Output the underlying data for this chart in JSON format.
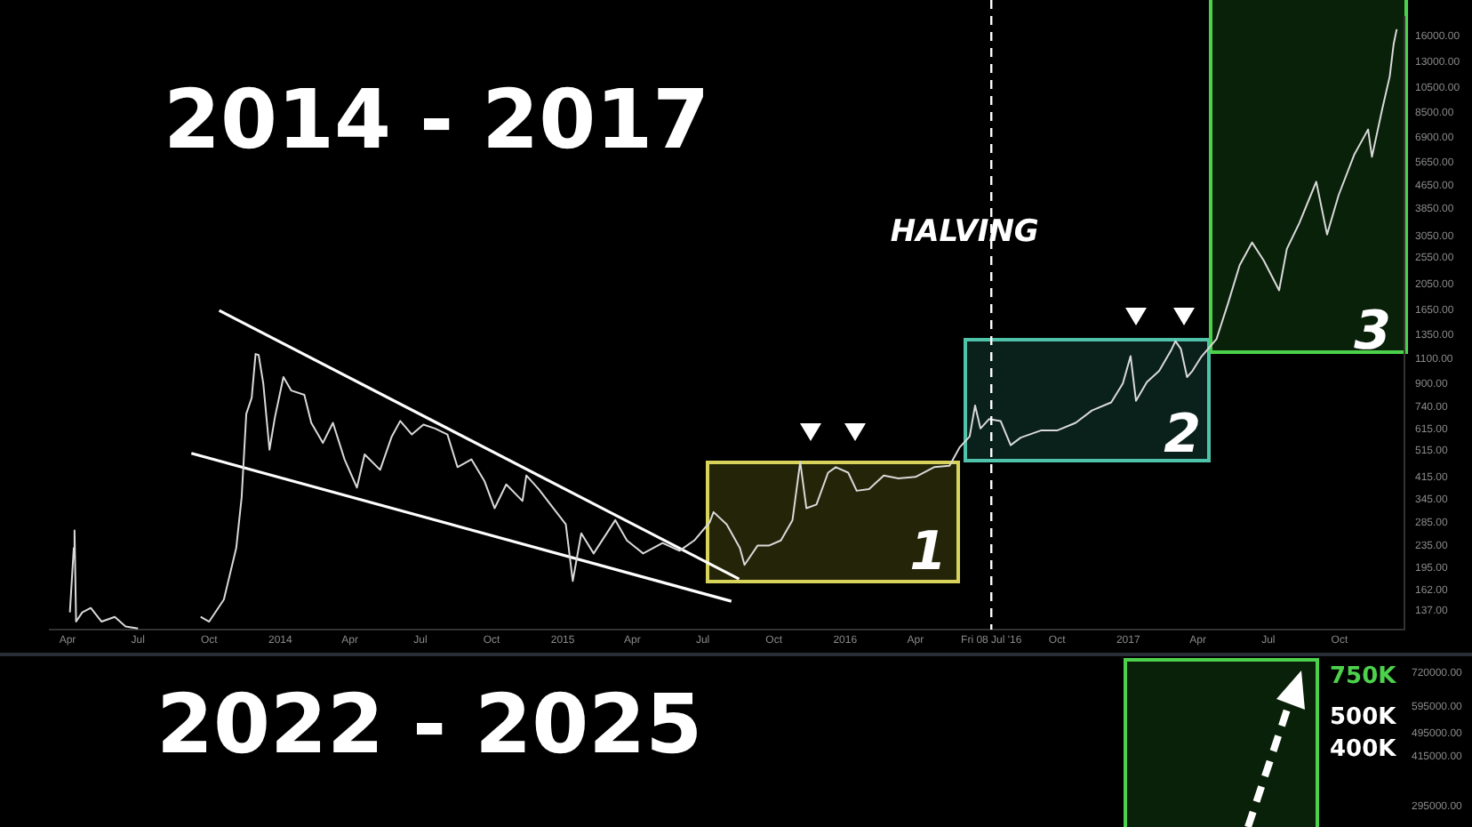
{
  "chart_data": [
    {
      "type": "line",
      "title": "2014 - 2017",
      "log": "y",
      "grid": false,
      "legend": false,
      "marker": "none",
      "xlim": [
        "2013-03-09",
        "2017-12-24"
      ],
      "ylim": [
        117,
        18800
      ],
      "xticks": [
        {
          "value": "2013-04-01",
          "label": "Apr"
        },
        {
          "value": "2013-07-01",
          "label": "Jul"
        },
        {
          "value": "2013-10-01",
          "label": "Oct"
        },
        {
          "value": "2014-01-01",
          "label": "2014"
        },
        {
          "value": "2014-04-01",
          "label": "Apr"
        },
        {
          "value": "2014-07-01",
          "label": "Jul"
        },
        {
          "value": "2014-10-01",
          "label": "Oct"
        },
        {
          "value": "2015-01-01",
          "label": "2015"
        },
        {
          "value": "2015-04-01",
          "label": "Apr"
        },
        {
          "value": "2015-07-01",
          "label": "Jul"
        },
        {
          "value": "2015-10-01",
          "label": "Oct"
        },
        {
          "value": "2016-01-01",
          "label": "2016"
        },
        {
          "value": "2016-04-01",
          "label": "Apr"
        },
        {
          "value": "2016-07-08",
          "label": "Fri 08 Jul '16"
        },
        {
          "value": "2016-10-01",
          "label": "Oct"
        },
        {
          "value": "2017-01-01",
          "label": "2017"
        },
        {
          "value": "2017-04-01",
          "label": "Apr"
        },
        {
          "value": "2017-07-01",
          "label": "Jul"
        },
        {
          "value": "2017-10-01",
          "label": "Oct"
        }
      ],
      "yticks": [
        {
          "value": 137,
          "label": "137.00"
        },
        {
          "value": 162,
          "label": "162.00"
        },
        {
          "value": 195,
          "label": "195.00"
        },
        {
          "value": 235,
          "label": "235.00"
        },
        {
          "value": 285,
          "label": "285.00"
        },
        {
          "value": 345,
          "label": "345.00"
        },
        {
          "value": 415,
          "label": "415.00"
        },
        {
          "value": 515,
          "label": "515.00"
        },
        {
          "value": 615,
          "label": "615.00"
        },
        {
          "value": 740,
          "label": "740.00"
        },
        {
          "value": 900,
          "label": "900.00"
        },
        {
          "value": 1100,
          "label": "1100.00"
        },
        {
          "value": 1350,
          "label": "1350.00"
        },
        {
          "value": 1650,
          "label": "1650.00"
        },
        {
          "value": 2050,
          "label": "2050.00"
        },
        {
          "value": 2550,
          "label": "2550.00"
        },
        {
          "value": 3050,
          "label": "3050.00"
        },
        {
          "value": 3850,
          "label": "3850.00"
        },
        {
          "value": 4650,
          "label": "4650.00"
        },
        {
          "value": 5650,
          "label": "5650.00"
        },
        {
          "value": 6900,
          "label": "6900.00"
        },
        {
          "value": 8500,
          "label": "8500.00"
        },
        {
          "value": 10500,
          "label": "10500.00"
        },
        {
          "value": 13000,
          "label": "13000.00"
        },
        {
          "value": 16000,
          "label": "16000.00"
        }
      ],
      "x": [
        "2013-04-04",
        "2013-04-09",
        "2013-04-10",
        "2013-04-12",
        "2013-04-20",
        "2013-05-01",
        "2013-05-15",
        "2013-06-01",
        "2013-06-15",
        "2013-07-01",
        "2013-07-10",
        "2013-09-20",
        "2013-10-01",
        "2013-10-20",
        "2013-11-05",
        "2013-11-12",
        "2013-11-18",
        "2013-11-25",
        "2013-11-30",
        "2013-12-04",
        "2013-12-10",
        "2013-12-18",
        "2013-12-25",
        "2014-01-05",
        "2014-01-15",
        "2014-02-01",
        "2014-02-10",
        "2014-02-25",
        "2014-03-10",
        "2014-03-25",
        "2014-04-10",
        "2014-04-20",
        "2014-05-10",
        "2014-05-25",
        "2014-06-05",
        "2014-06-20",
        "2014-07-05",
        "2014-07-20",
        "2014-08-05",
        "2014-08-18",
        "2014-09-05",
        "2014-09-22",
        "2014-10-05",
        "2014-10-20",
        "2014-11-10",
        "2014-11-15",
        "2014-12-01",
        "2014-12-20",
        "2015-01-05",
        "2015-01-14",
        "2015-01-25",
        "2015-02-10",
        "2015-03-10",
        "2015-03-25",
        "2015-04-15",
        "2015-05-10",
        "2015-06-01",
        "2015-06-20",
        "2015-07-10",
        "2015-07-15",
        "2015-08-01",
        "2015-08-18",
        "2015-08-24",
        "2015-09-10",
        "2015-09-25",
        "2015-10-10",
        "2015-10-25",
        "2015-11-04",
        "2015-11-12",
        "2015-11-25",
        "2015-12-10",
        "2015-12-20",
        "2016-01-05",
        "2016-01-16",
        "2016-02-01",
        "2016-02-20",
        "2016-03-10",
        "2016-04-01",
        "2016-04-25",
        "2016-05-15",
        "2016-05-28",
        "2016-06-10",
        "2016-06-17",
        "2016-06-24",
        "2016-07-05",
        "2016-07-20",
        "2016-08-02",
        "2016-08-15",
        "2016-09-10",
        "2016-10-01",
        "2016-10-25",
        "2016-11-15",
        "2016-12-10",
        "2016-12-25",
        "2017-01-04",
        "2017-01-11",
        "2017-01-25",
        "2017-02-10",
        "2017-02-25",
        "2017-03-03",
        "2017-03-10",
        "2017-03-18",
        "2017-03-25",
        "2017-04-05",
        "2017-04-25",
        "2017-05-10",
        "2017-05-25",
        "2017-06-10",
        "2017-06-25",
        "2017-07-15",
        "2017-07-25",
        "2017-08-10",
        "2017-08-25",
        "2017-09-01",
        "2017-09-15",
        "2017-09-30",
        "2017-10-20",
        "2017-11-07",
        "2017-11-12",
        "2017-11-25",
        "2017-12-05",
        "2017-12-10",
        "2017-12-14"
      ],
      "series": [
        {
          "color": "#d9d9d9",
          "values": [
            135,
            230,
            266,
            125,
            135,
            140,
            125,
            130,
            120,
            118,
            null,
            130,
            125,
            150,
            230,
            350,
            700,
            800,
            1150,
            1140,
            900,
            520,
            680,
            950,
            850,
            820,
            650,
            550,
            650,
            480,
            380,
            500,
            440,
            580,
            660,
            590,
            640,
            620,
            590,
            450,
            480,
            400,
            320,
            390,
            340,
            420,
            375,
            320,
            280,
            175,
            260,
            220,
            290,
            245,
            220,
            240,
            225,
            245,
            285,
            310,
            280,
            230,
            200,
            235,
            235,
            245,
            290,
            470,
            320,
            330,
            430,
            450,
            430,
            370,
            375,
            420,
            410,
            415,
            450,
            455,
            530,
            580,
            750,
            620,
            670,
            660,
            540,
            575,
            610,
            610,
            650,
            720,
            770,
            900,
            1130,
            780,
            910,
            1000,
            1180,
            1280,
            1200,
            950,
            1000,
            1120,
            1300,
            1750,
            2400,
            2900,
            2500,
            1950,
            2750,
            3400,
            4300,
            4800,
            3100,
            4300,
            6000,
            7400,
            5900,
            8700,
            11500,
            15000,
            17000
          ]
        },
        {
          "color": "#ffffff",
          "x": [
            "2013-10-14",
            "2015-08-17"
          ],
          "values": [
            1650,
            178
          ]
        },
        {
          "color": "#ffffff",
          "x": [
            "2013-09-08",
            "2015-08-07"
          ],
          "values": [
            505,
            148
          ]
        }
      ],
      "ref_lines": [
        {
          "axis": "x",
          "value": "2016-07-08",
          "label": "HALVING",
          "color": "#ffffff",
          "line_style": "dashed"
        }
      ],
      "annotations": [
        "1",
        "2",
        "3"
      ]
    },
    {
      "type": "other",
      "title": "2022 - 2025",
      "annotations": [
        "750K",
        "500K",
        "400K",
        "720000.00",
        "595000.00",
        "495000.00",
        "415000.00",
        "295000.00"
      ]
    }
  ]
}
